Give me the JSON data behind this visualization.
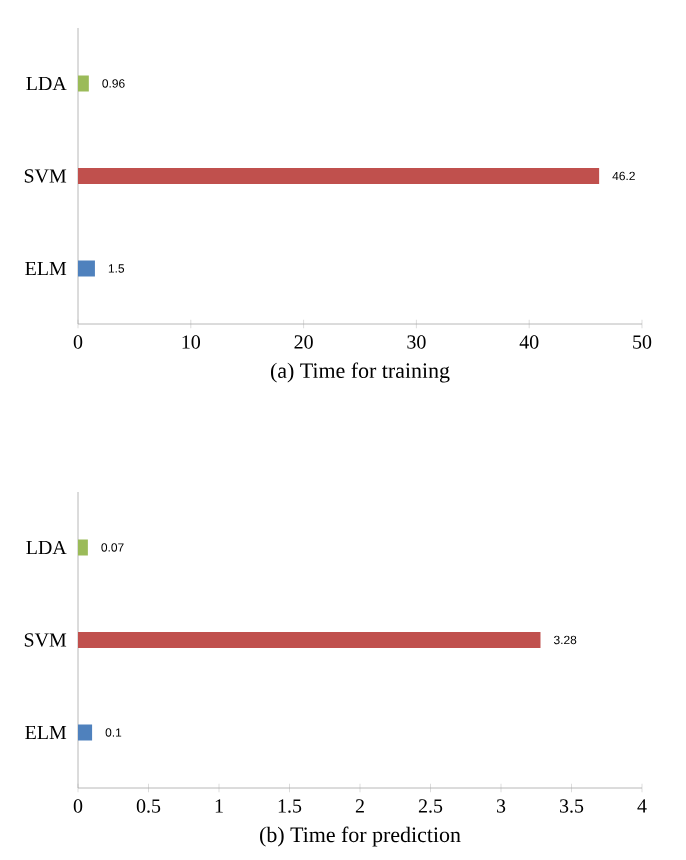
{
  "chart_data": [
    {
      "type": "bar",
      "orientation": "horizontal",
      "categories": [
        "LDA",
        "SVM",
        "ELM"
      ],
      "values": [
        0.96,
        46.2,
        1.5
      ],
      "colors": [
        "#9bbb59",
        "#c0504d",
        "#4f81bd"
      ],
      "xlim": [
        0,
        50
      ],
      "xticks": [
        0,
        10,
        20,
        30,
        40,
        50
      ],
      "xlabel": "(a) Time for training",
      "data_labels": true
    },
    {
      "type": "bar",
      "orientation": "horizontal",
      "categories": [
        "LDA",
        "SVM",
        "ELM"
      ],
      "values": [
        0.07,
        3.28,
        0.1
      ],
      "colors": [
        "#9bbb59",
        "#c0504d",
        "#4f81bd"
      ],
      "xlim": [
        0,
        4
      ],
      "xticks": [
        0,
        0.5,
        1,
        1.5,
        2,
        2.5,
        3,
        3.5,
        4
      ],
      "xlabel": "(b) Time for prediction",
      "data_labels": true
    }
  ]
}
